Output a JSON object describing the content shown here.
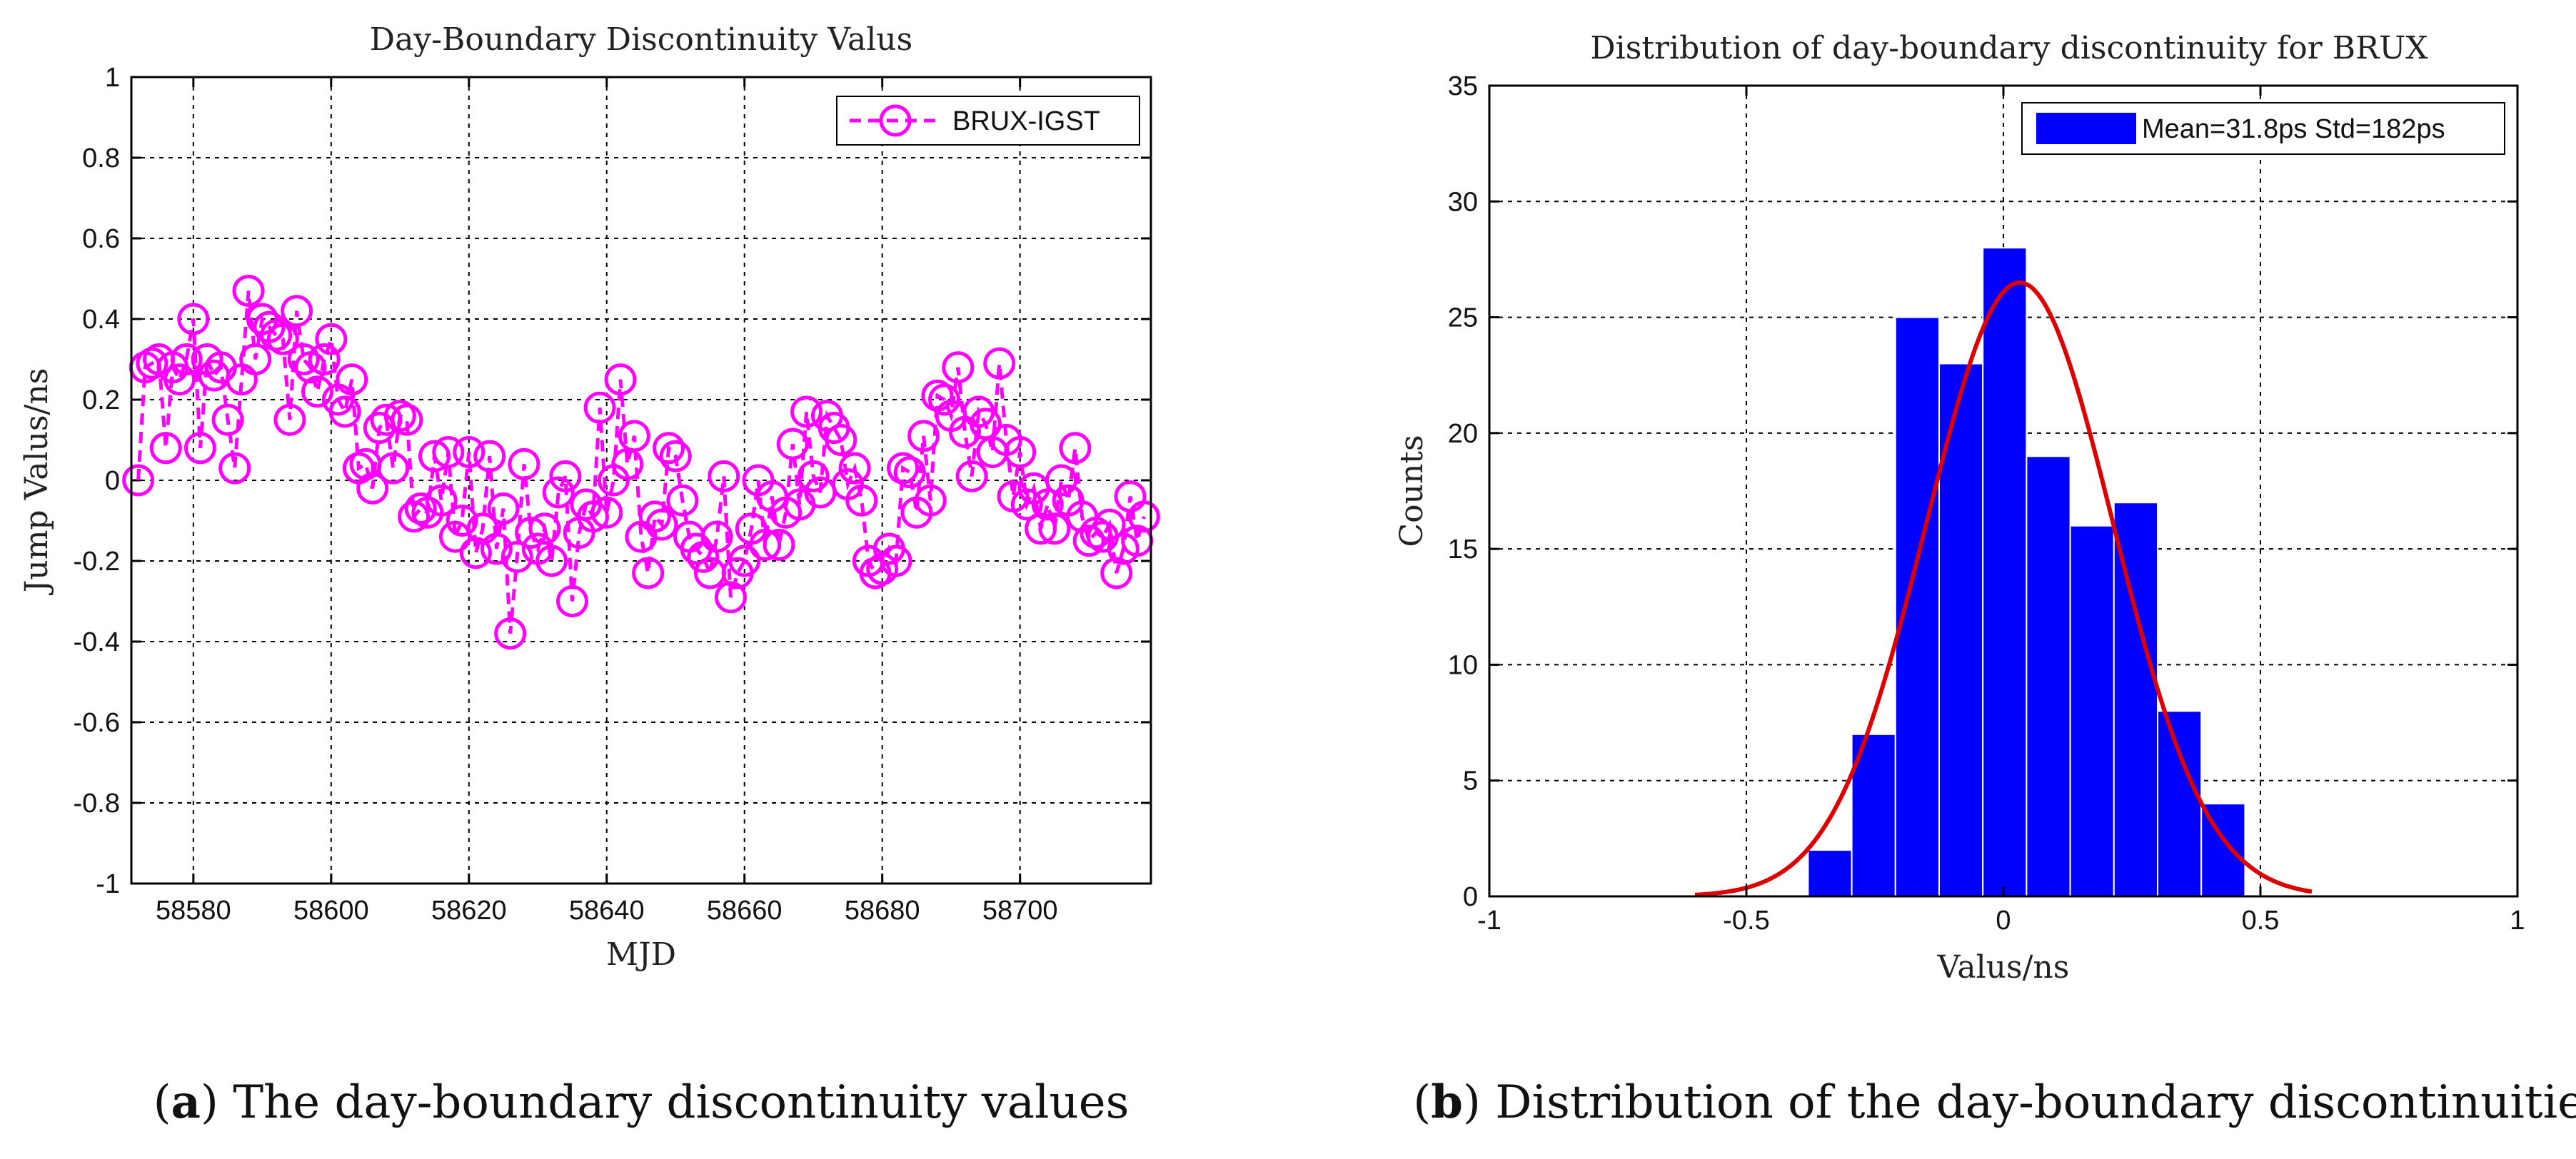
{
  "chart_data": [
    {
      "type": "line",
      "title": "Day-Boundary Discontinuity Valus",
      "xlabel": "MJD",
      "ylabel": "Jump Valus/ns",
      "xlim": [
        58571,
        58719
      ],
      "ylim": [
        -1,
        1
      ],
      "x_ticks": [
        58580,
        58600,
        58620,
        58640,
        58660,
        58680,
        58700
      ],
      "y_ticks": [
        -1,
        -0.8,
        -0.6,
        -0.4,
        -0.2,
        0,
        0.2,
        0.4,
        0.6,
        0.8,
        1
      ],
      "x_tick_labels": [
        "58580",
        "58600",
        "58620",
        "58640",
        "58660",
        "58680",
        "58700"
      ],
      "y_tick_labels": [
        "-1",
        "-0.8",
        "-0.6",
        "-0.4",
        "-0.2",
        "0",
        "0.2",
        "0.4",
        "0.6",
        "0.8",
        "1"
      ],
      "grid": true,
      "legend_position": "top-right",
      "series": [
        {
          "name": "BRUX-IGST",
          "color": "#ff00ff",
          "marker": "circle",
          "line_style": "dashed",
          "x": [
            58572,
            58573,
            58574,
            58575,
            58576,
            58577,
            58578,
            58579,
            58580,
            58581,
            58582,
            58583,
            58584,
            58585,
            58586,
            58587,
            58588,
            58589,
            58590,
            58591,
            58592,
            58593,
            58594,
            58595,
            58596,
            58597,
            58598,
            58599,
            58600,
            58601,
            58602,
            58603,
            58604,
            58605,
            58606,
            58607,
            58608,
            58609,
            58610,
            58611,
            58612,
            58613,
            58614,
            58615,
            58616,
            58617,
            58618,
            58619,
            58620,
            58621,
            58622,
            58623,
            58624,
            58625,
            58626,
            58627,
            58628,
            58629,
            58630,
            58631,
            58632,
            58633,
            58634,
            58635,
            58636,
            58637,
            58638,
            58639,
            58640,
            58641,
            58642,
            58643,
            58644,
            58645,
            58646,
            58647,
            58648,
            58649,
            58650,
            58651,
            58652,
            58653,
            58654,
            58655,
            58656,
            58657,
            58658,
            58659,
            58660,
            58661,
            58662,
            58663,
            58664,
            58665,
            58666,
            58667,
            58668,
            58669,
            58670,
            58671,
            58672,
            58673,
            58674,
            58675,
            58676,
            58677,
            58678,
            58679,
            58680,
            58681,
            58682,
            58683,
            58684,
            58685,
            58686,
            58687,
            58688,
            58689,
            58690,
            58691,
            58692,
            58693,
            58694,
            58695,
            58696,
            58697,
            58698,
            58699,
            58700,
            58701,
            58702,
            58703,
            58704,
            58705,
            58706,
            58707,
            58708,
            58709,
            58710,
            58711,
            58712,
            58713,
            58714,
            58715,
            58716,
            58717,
            58718
          ],
          "values": [
            0.0,
            0.28,
            0.29,
            0.3,
            0.08,
            0.28,
            0.25,
            0.3,
            0.4,
            0.08,
            0.3,
            0.26,
            0.28,
            0.15,
            0.03,
            0.25,
            0.47,
            0.3,
            0.4,
            0.38,
            0.36,
            0.35,
            0.15,
            0.42,
            0.3,
            0.28,
            0.22,
            0.3,
            0.35,
            0.2,
            0.17,
            0.25,
            0.03,
            0.04,
            -0.02,
            0.13,
            0.15,
            0.03,
            0.16,
            0.15,
            -0.09,
            -0.07,
            -0.08,
            0.06,
            -0.05,
            0.07,
            -0.14,
            -0.1,
            0.07,
            -0.18,
            -0.12,
            0.06,
            -0.17,
            -0.07,
            -0.38,
            -0.19,
            0.04,
            -0.13,
            -0.17,
            -0.12,
            -0.2,
            -0.03,
            0.01,
            -0.3,
            -0.13,
            -0.06,
            -0.09,
            0.18,
            -0.08,
            0.0,
            0.25,
            0.04,
            0.11,
            -0.14,
            -0.23,
            -0.09,
            -0.11,
            0.08,
            0.06,
            -0.05,
            -0.14,
            -0.17,
            -0.19,
            -0.23,
            -0.14,
            0.01,
            -0.29,
            -0.23,
            -0.2,
            -0.12,
            0.0,
            -0.16,
            -0.04,
            -0.16,
            -0.08,
            0.09,
            -0.06,
            0.17,
            0.01,
            -0.03,
            0.16,
            0.13,
            0.1,
            -0.01,
            0.03,
            -0.05,
            -0.2,
            -0.23,
            -0.22,
            -0.17,
            -0.2,
            0.03,
            0.02,
            -0.08,
            0.11,
            -0.05,
            0.21,
            0.2,
            0.16,
            0.28,
            0.12,
            0.01,
            0.17,
            0.14,
            0.07,
            0.29,
            0.1,
            -0.04,
            0.07,
            -0.06,
            -0.02,
            -0.12,
            -0.06,
            -0.12,
            0.0,
            -0.05,
            0.08,
            -0.09,
            -0.15,
            -0.13,
            -0.14,
            -0.11,
            -0.23,
            -0.17,
            -0.04,
            -0.15,
            -0.09
          ]
        }
      ]
    },
    {
      "type": "bar",
      "subtype": "histogram",
      "title": "Distribution of day-boundary discontinuity for BRUX",
      "xlabel": "Valus/ns",
      "ylabel": "Counts",
      "xlim": [
        -1,
        1
      ],
      "ylim": [
        0,
        35
      ],
      "x_ticks": [
        -1,
        -0.5,
        0,
        0.5,
        1
      ],
      "y_ticks": [
        0,
        5,
        10,
        15,
        20,
        25,
        30,
        35
      ],
      "x_tick_labels": [
        "-1",
        "-0.5",
        "0",
        "0.5",
        "1"
      ],
      "y_tick_labels": [
        "0",
        "5",
        "10",
        "15",
        "20",
        "25",
        "30",
        "35"
      ],
      "grid": true,
      "legend_position": "top-right",
      "bin_edges": [
        -0.38,
        -0.295,
        -0.21,
        -0.125,
        -0.04,
        0.045,
        0.13,
        0.215,
        0.3,
        0.385,
        0.47
      ],
      "values": [
        2,
        7,
        25,
        23,
        28,
        19,
        16,
        17,
        8,
        4
      ],
      "bar_color": "#0000ff",
      "legend_label": "Mean=31.8ps Std=182ps",
      "fit_curve": {
        "type": "normal",
        "color": "#dd0000",
        "mean": 0.0318,
        "std": 0.182,
        "peak": 26.5,
        "x_range": [
          -0.6,
          0.6
        ]
      }
    }
  ],
  "captions": [
    {
      "letter": "a",
      "text": " The day-boundary discontinuity values"
    },
    {
      "letter": "b",
      "text": " Distribution of the day-boundary discontinuities"
    }
  ]
}
